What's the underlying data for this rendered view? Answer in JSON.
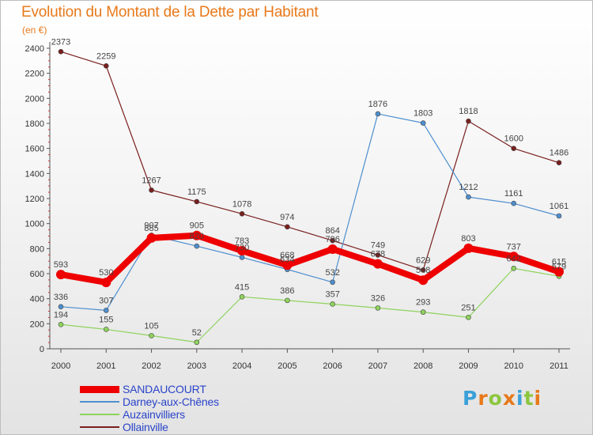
{
  "title": "Evolution du Montant de la Dette par Habitant",
  "unit": "(en €)",
  "logo": {
    "text": "Proxiti",
    "colors": [
      "#3aa0d8",
      "#e8791a",
      "#8cc63f",
      "#e8791a",
      "#3aa0d8",
      "#8cc63f",
      "#e8791a"
    ]
  },
  "chart_data": {
    "type": "line",
    "title": "Evolution du Montant de la Dette par Habitant",
    "ylabel": "(en €)",
    "xlabel": "",
    "categories": [
      "2000",
      "2001",
      "2002",
      "2003",
      "2004",
      "2005",
      "2006",
      "2007",
      "2008",
      "2009",
      "2010",
      "2011"
    ],
    "ylim": [
      0,
      2400
    ],
    "yticks": [
      0,
      200,
      400,
      600,
      800,
      1000,
      1200,
      1400,
      1600,
      1800,
      2000,
      2200,
      2400
    ],
    "grid": false,
    "legend": "bottom-left",
    "series": [
      {
        "name": "Ollainville",
        "color": "#7a1f1f",
        "thick": false,
        "values": [
          2373,
          2259,
          1267,
          1175,
          1078,
          974,
          864,
          749,
          629,
          1818,
          1600,
          1486
        ],
        "labels": [
          "2373",
          "2259",
          "1267",
          "1175",
          "1078",
          "974",
          "864",
          "749",
          "629",
          "1818",
          "1600",
          "1486"
        ]
      },
      {
        "name": "Darney-aux-Chênes",
        "color": "#4e8fcf",
        "thick": false,
        "values": [
          336,
          307,
          907,
          820,
          730,
          634,
          532,
          1876,
          1803,
          1212,
          1161,
          1061
        ],
        "labels": [
          "336",
          "307",
          "907",
          "820",
          "730",
          "634",
          "532",
          "1876",
          "1803",
          "1212",
          "1161",
          "1061"
        ]
      },
      {
        "name": "Auzainvilliers",
        "color": "#8ed35c",
        "thick": false,
        "values": [
          194,
          155,
          105,
          52,
          415,
          386,
          357,
          326,
          293,
          251,
          642,
          579
        ],
        "labels": [
          "194",
          "155",
          "105",
          "52",
          "415",
          "386",
          "357",
          "326",
          "293",
          "251",
          "642",
          "579"
        ]
      },
      {
        "name": "SANDAUCOURT",
        "color": "#ee0000",
        "thick": true,
        "values": [
          593,
          530,
          885,
          905,
          783,
          668,
          796,
          678,
          548,
          803,
          737,
          615
        ],
        "labels": [
          "593",
          "530",
          "885",
          "905",
          "783",
          "668",
          "796",
          "678",
          "548",
          "803",
          "737",
          "615"
        ]
      }
    ],
    "legend_order": [
      "SANDAUCOURT",
      "Darney-aux-Chênes",
      "Auzainvilliers",
      "Ollainville"
    ]
  }
}
